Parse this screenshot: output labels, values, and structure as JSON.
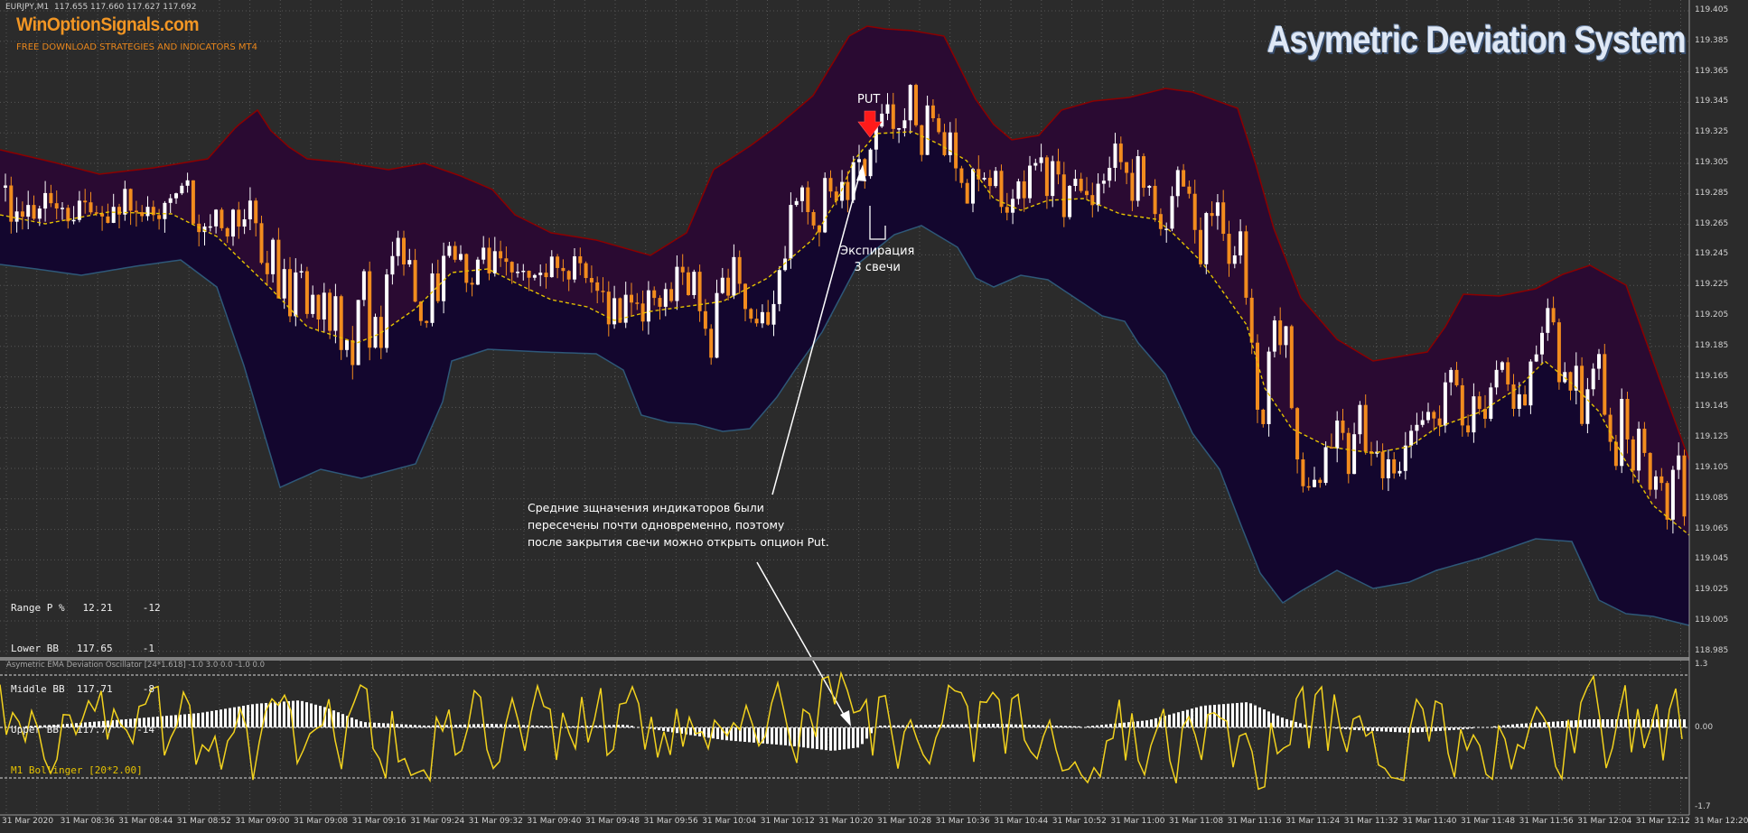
{
  "header": {
    "symbol_info": "EURJPY,M1  117.655 117.660 117.627 117.692",
    "brand_name": "WinOptionSignals.com",
    "brand_tagline": "FREE DOWNLOAD STRATEGIES AND INDICATORS MT4",
    "system_title": "Asymetric Deviation System"
  },
  "annotations": {
    "signal": "PUT",
    "expiration_line1": "Экспирация",
    "expiration_line2": "3 свечи",
    "note_line1": "Средние зщначения индикаторов были",
    "note_line2": "пересечены почти одновременно, поэтому",
    "note_line3": "после закрытия свечи можно открыть опцион Put."
  },
  "info_panel": {
    "rows": [
      {
        "name": "Range P %",
        "value": "12.21",
        "change": "-12"
      },
      {
        "name": "Lower BB",
        "value": "117.65",
        "change": "-1"
      },
      {
        "name": "Middle BB",
        "value": "117.71",
        "change": "-8"
      },
      {
        "name": "Upper BB",
        "value": "117.77",
        "change": "-14"
      }
    ],
    "footer": "M1 Bollinger [20*2.00]"
  },
  "oscillator": {
    "header": "Asymetric EMA Deviation Oscillator [24*1.618] -1.0 3.0 0.0 -1.0 0.0",
    "scale_top": "1.3",
    "scale_zero": "0.00",
    "scale_bottom": "-1.7"
  },
  "price_axis": [
    "119.405",
    "119.385",
    "119.365",
    "119.345",
    "119.325",
    "119.305",
    "119.285",
    "119.265",
    "119.245",
    "119.225",
    "119.205",
    "119.185",
    "119.165",
    "119.145",
    "119.125",
    "119.105",
    "119.085",
    "119.065",
    "119.045",
    "119.025",
    "119.005",
    "118.985"
  ],
  "time_axis": [
    "31 Mar 2020",
    "31 Mar 08:36",
    "31 Mar 08:44",
    "31 Mar 08:52",
    "31 Mar 09:00",
    "31 Mar 09:08",
    "31 Mar 09:16",
    "31 Mar 09:24",
    "31 Mar 09:32",
    "31 Mar 09:40",
    "31 Mar 09:48",
    "31 Mar 09:56",
    "31 Mar 10:04",
    "31 Mar 10:12",
    "31 Mar 10:20",
    "31 Mar 10:28",
    "31 Mar 10:36",
    "31 Mar 10:44",
    "31 Mar 10:52",
    "31 Mar 11:00",
    "31 Mar 11:08",
    "31 Mar 11:16",
    "31 Mar 11:24",
    "31 Mar 11:32",
    "31 Mar 11:40",
    "31 Mar 11:48",
    "31 Mar 11:56",
    "31 Mar 12:04",
    "31 Mar 12:12",
    "31 Mar 12:20"
  ],
  "colors": {
    "background": "#2b2b2b",
    "grid": "#555555",
    "bull_candle": "#ffffff",
    "bear_candle": "#f28c1e",
    "upper_band_fill": "#2a0a32",
    "lower_band_fill": "#13062e",
    "upper_band_line": "#8b0000",
    "lower_band_line": "#2e5878",
    "middle_line": "#e6c200",
    "signal_arrow": "#ff1a1a",
    "oscillator_line": "#f2d21e",
    "histogram": "#ffffff"
  }
}
